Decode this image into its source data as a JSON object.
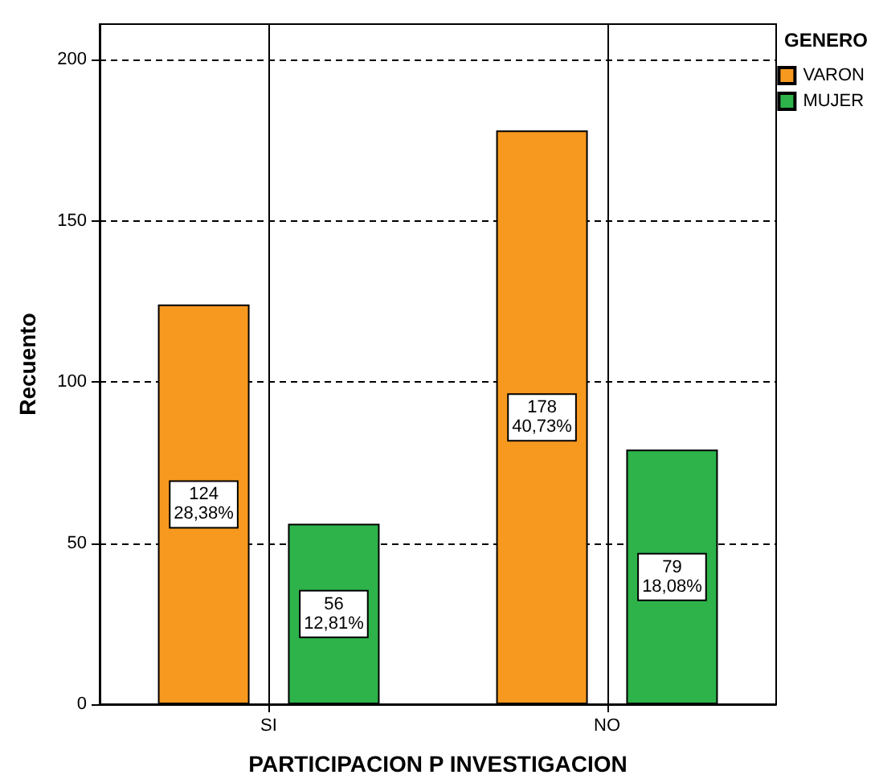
{
  "chart_data": {
    "type": "bar",
    "xlabel": "PARTICIPACION P INVESTIGACION",
    "ylabel": "Recuento",
    "legend_title": "GENERO",
    "categories": [
      "SI",
      "NO"
    ],
    "series": [
      {
        "name": "VARON",
        "color": "#f7991f",
        "values": [
          124,
          178
        ],
        "value_labels": [
          "124\n28,38%",
          "178\n40,73%"
        ]
      },
      {
        "name": "MUJER",
        "color": "#2db34a",
        "values": [
          56,
          79
        ],
        "value_labels": [
          "56\n12,81%",
          "79\n18,08%"
        ]
      }
    ],
    "ref_lines": [
      {
        "axis": "x",
        "value": "SI",
        "color": "#000000"
      },
      {
        "axis": "x",
        "value": "NO",
        "color": "#000000"
      }
    ],
    "ylim": [
      0,
      211
    ],
    "yticks": [
      0,
      50,
      100,
      150,
      200
    ],
    "grid": "y",
    "legend": "top right"
  }
}
